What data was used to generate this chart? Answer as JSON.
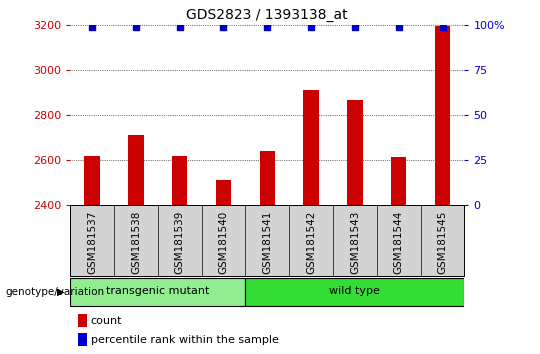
{
  "title": "GDS2823 / 1393138_at",
  "samples": [
    "GSM181537",
    "GSM181538",
    "GSM181539",
    "GSM181540",
    "GSM181541",
    "GSM181542",
    "GSM181543",
    "GSM181544",
    "GSM181545"
  ],
  "counts": [
    2620,
    2710,
    2620,
    2510,
    2640,
    2910,
    2865,
    2615,
    3195
  ],
  "ylim_left": [
    2400,
    3200
  ],
  "ylim_right": [
    0,
    100
  ],
  "yticks_left": [
    2400,
    2600,
    2800,
    3000,
    3200
  ],
  "yticks_right": [
    0,
    25,
    50,
    75,
    100
  ],
  "bar_color": "#cc0000",
  "dot_color": "#0000cc",
  "groups": [
    {
      "label": "transgenic mutant",
      "indices": [
        0,
        1,
        2,
        3
      ],
      "color": "#90ee90"
    },
    {
      "label": "wild type",
      "indices": [
        4,
        5,
        6,
        7,
        8
      ],
      "color": "#33dd33"
    }
  ],
  "group_label": "genotype/variation",
  "legend_count_label": "count",
  "legend_pct_label": "percentile rank within the sample",
  "tick_area_color": "#d3d3d3",
  "right_axis_color": "#0000cc",
  "left_axis_color": "#cc0000",
  "title_fontsize": 10,
  "label_fontsize": 7.5,
  "group_fontsize": 8,
  "legend_fontsize": 8
}
